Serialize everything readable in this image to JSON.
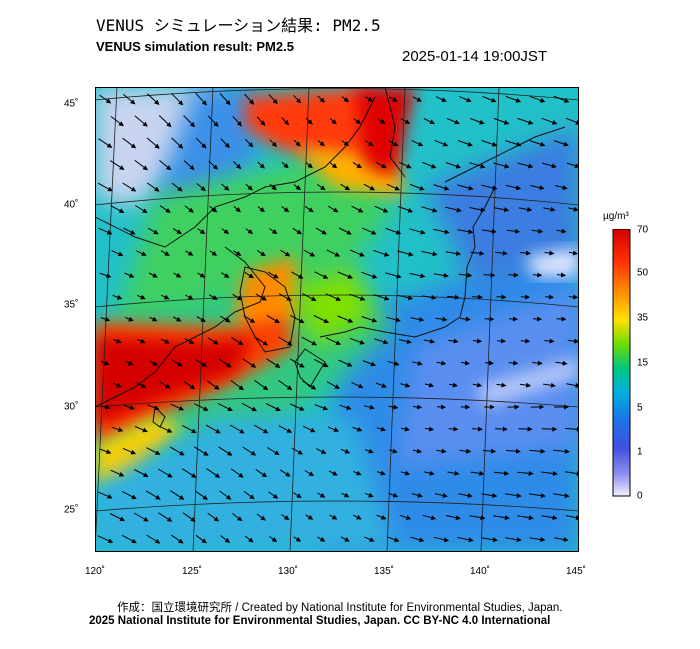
{
  "header": {
    "title_jp": "VENUS シミュレーション結果: PM2.5",
    "title_en": "VENUS simulation result: PM2.5",
    "timestamp": "2025-01-14 19:00JST"
  },
  "map": {
    "lon_ticks": [
      "120˚",
      "125˚",
      "130˚",
      "135˚",
      "140˚",
      "145˚"
    ],
    "lat_ticks": [
      "45˚",
      "40˚",
      "35˚",
      "30˚",
      "25˚"
    ],
    "lon_range": [
      120,
      145
    ],
    "lat_range": [
      23,
      46
    ],
    "field": "PM2.5 concentration with wind vectors"
  },
  "colorbar": {
    "unit": "µg/m³",
    "labels": [
      "70",
      "50",
      "35",
      "15",
      "5",
      "1",
      "0"
    ],
    "colors": [
      "#d00000",
      "#ff4000",
      "#ff9900",
      "#ffe000",
      "#a0e000",
      "#00c800",
      "#00d0b0",
      "#00a0f0",
      "#2050e0",
      "#8080ff",
      "#e8e8ff"
    ]
  },
  "footer": {
    "credit_line1": "作成：国立環境研究所 / Created by National Institute for Environmental Studies, Japan.",
    "credit_line2": "2025 National Institute for Environmental Studies, Japan. CC BY-NC 4.0 International"
  }
}
